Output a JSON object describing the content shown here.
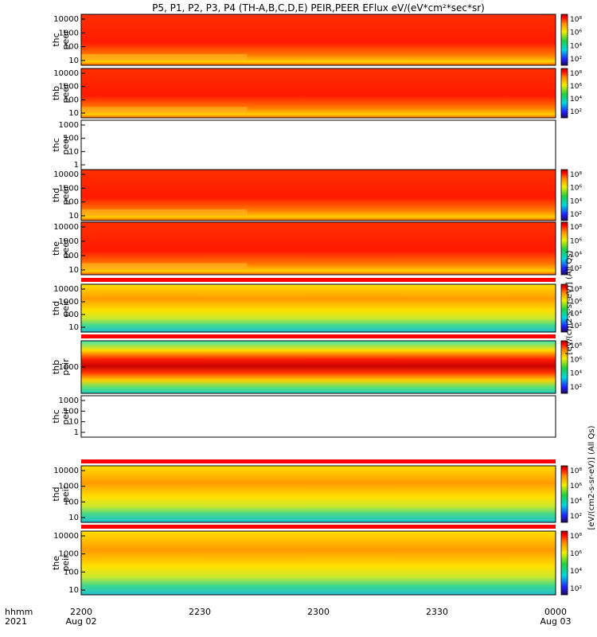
{
  "chart_data": {
    "type": "heatmap",
    "title": "P5, P1, P2, P3, P4 (TH-A,B,C,D,E) PEIR,PEER EFlux eV/(eV*cm²*sec*sr)",
    "x_axis": {
      "ticks": [
        "2200",
        "2230",
        "2300",
        "2330",
        "0000"
      ],
      "tick_dates": [
        "Aug 02",
        "Aug 03"
      ],
      "label_lines": [
        "hhmm",
        "2021"
      ]
    },
    "colorbar": {
      "ticks_top": "10⁸",
      "ticks": [
        "10⁶",
        "10⁴",
        "10²"
      ],
      "label_peer": "[eV/(cm2-s-sr-eV)] (All Qs)",
      "label_peir": "[eV/(cm2-s-sr-eV)] (All Qs)"
    },
    "panels": [
      {
        "label1": "thc",
        "label2": "peer",
        "type": "full",
        "yticks": [
          "10000",
          "1000",
          "100",
          "10"
        ]
      },
      {
        "label1": "thb",
        "label2": "peer",
        "type": "full",
        "yticks": [
          "10000",
          "1000",
          "100",
          "10"
        ]
      },
      {
        "label1": "thc",
        "label2": "peer",
        "type": "empty",
        "yticks": [
          "1000",
          "100",
          "10",
          "1"
        ]
      },
      {
        "label1": "thd",
        "label2": "peer",
        "type": "full",
        "yticks": [
          "10000",
          "1000",
          "100",
          "10"
        ]
      },
      {
        "label1": "the",
        "label2": "peer",
        "type": "full",
        "yticks": [
          "10000",
          "1000",
          "100",
          "10"
        ]
      },
      {
        "label1": "thd",
        "label2": "peir",
        "type": "ion",
        "yticks": [
          "10000",
          "1000",
          "100",
          "10"
        ]
      },
      {
        "label1": "thb",
        "label2": "peir",
        "type": "ion",
        "yticks": [
          "1000"
        ]
      },
      {
        "label1": "thc",
        "label2": "peir",
        "type": "empty",
        "yticks": [
          "1000",
          "100",
          "10",
          "1"
        ]
      },
      {
        "label1": "thd",
        "label2": "peir",
        "type": "ion",
        "yticks": [
          "10000",
          "1000",
          "100",
          "10"
        ]
      },
      {
        "label1": "the",
        "label2": "peir",
        "type": "ion",
        "yticks": [
          "10000",
          "1000",
          "100",
          "10"
        ]
      }
    ]
  }
}
